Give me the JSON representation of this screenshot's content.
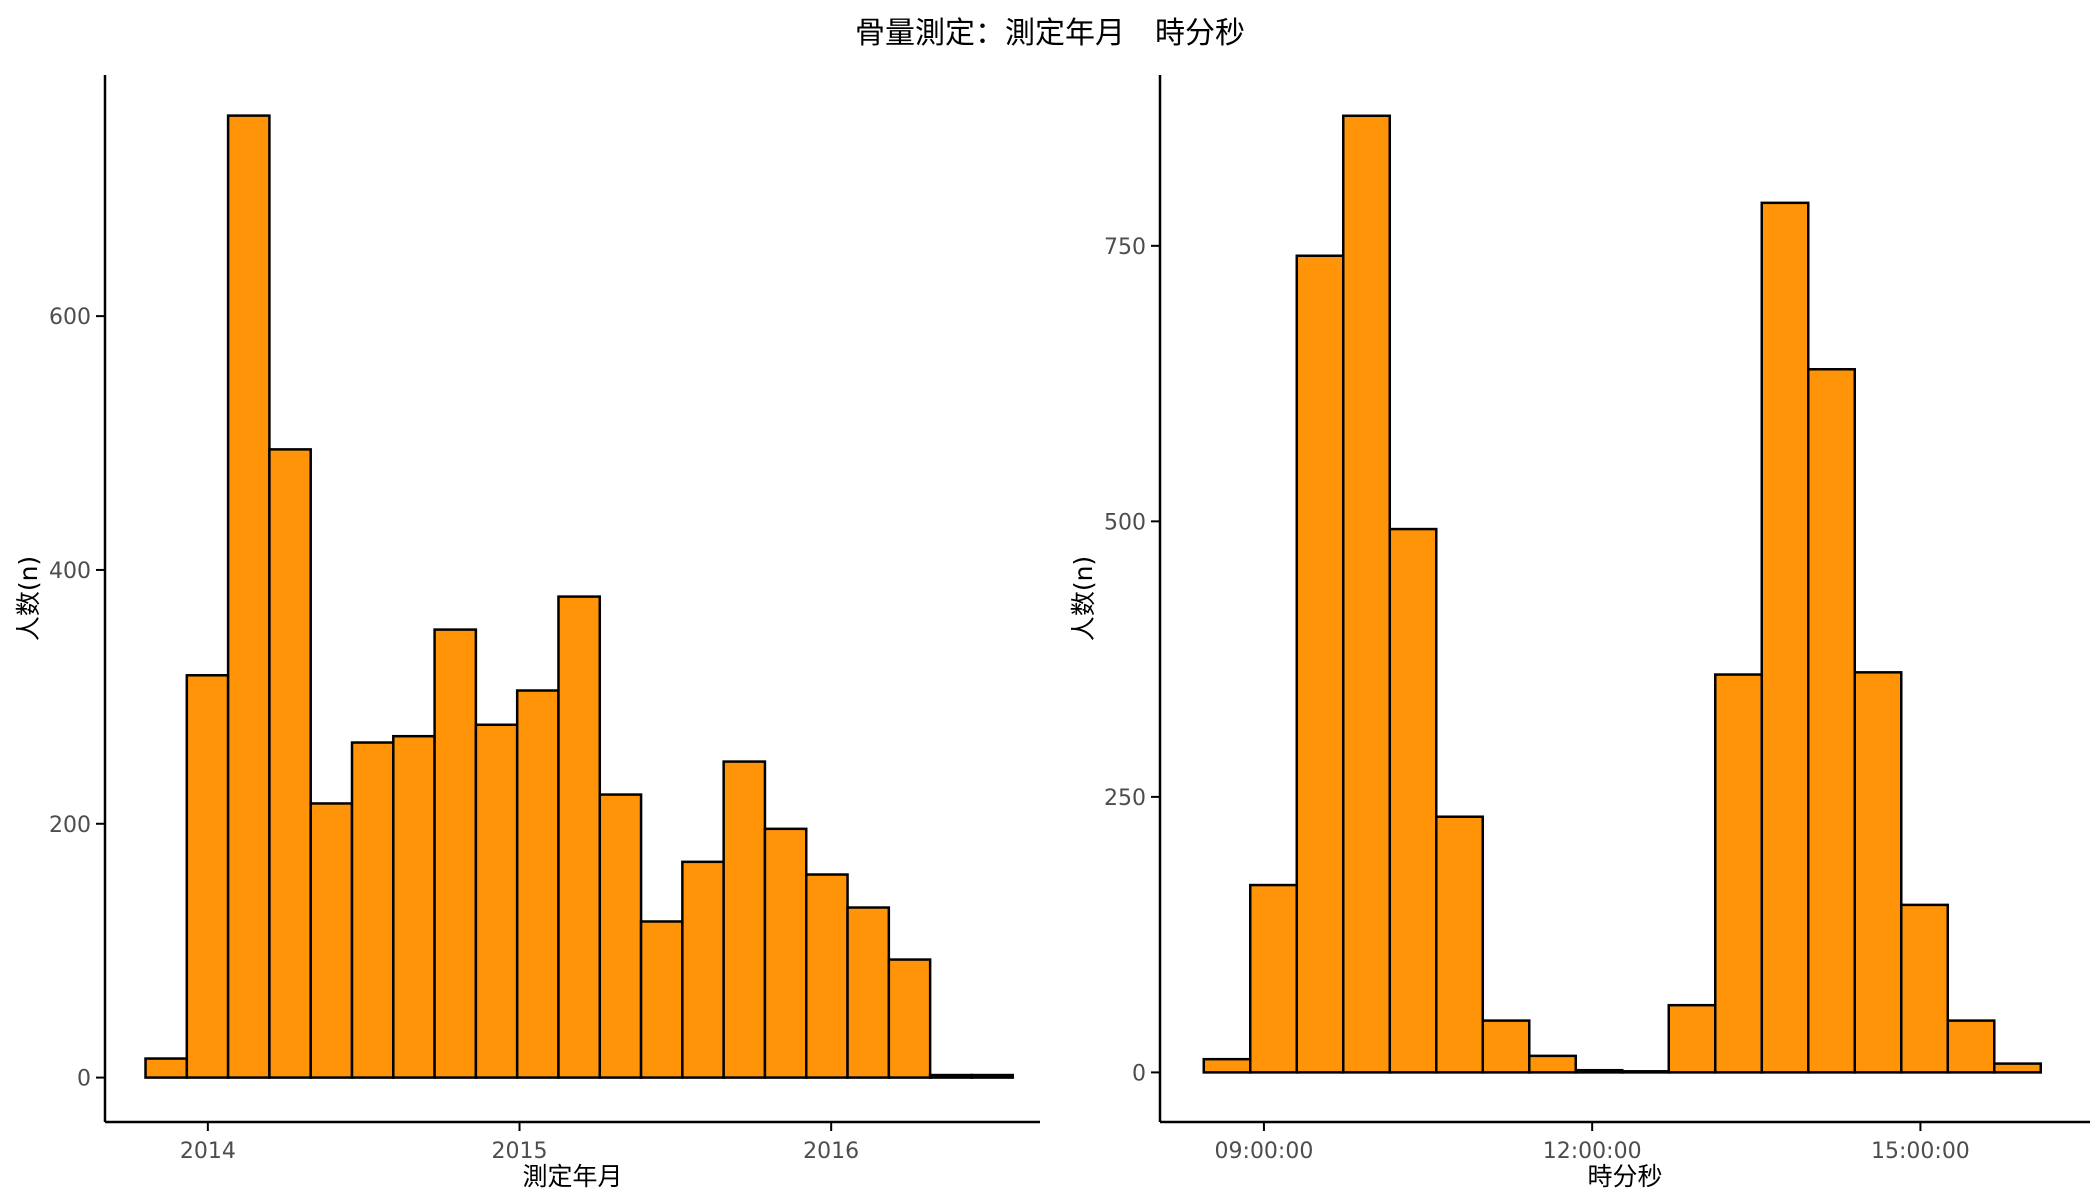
{
  "figure": {
    "title": "骨量測定：測定年月　時分秒"
  },
  "colors": {
    "bar_fill": "#FF9408",
    "bar_stroke": "#000000",
    "axis": "#000000",
    "tick_text": "#4d4d4d"
  },
  "chart_data": [
    {
      "type": "bar",
      "title": "",
      "xlabel": "測定年月",
      "ylabel": "人数(n)",
      "xlim": [
        2013.67,
        2016.67
      ],
      "ylim": [
        -35,
        790
      ],
      "x_ticks": [
        {
          "value": 2014,
          "label": "2014"
        },
        {
          "value": 2015,
          "label": "2015"
        },
        {
          "value": 2016,
          "label": "2016"
        }
      ],
      "y_ticks": [
        {
          "value": 0,
          "label": "0"
        },
        {
          "value": 200,
          "label": "200"
        },
        {
          "value": 400,
          "label": "400"
        },
        {
          "value": 600,
          "label": "600"
        }
      ],
      "bin_start": 2013.8,
      "bin_width": 0.1325,
      "values": [
        15,
        317,
        758,
        495,
        216,
        264,
        269,
        353,
        278,
        305,
        379,
        223,
        123,
        170,
        249,
        196,
        160,
        134,
        93,
        2,
        2
      ]
    },
    {
      "type": "bar",
      "title": "",
      "xlabel": "時分秒",
      "ylabel": "人数(n)",
      "xlim": [
        8.05,
        16.55
      ],
      "ylim": [
        -45,
        905
      ],
      "x_ticks": [
        {
          "value": 9,
          "label": "09:00:00"
        },
        {
          "value": 12,
          "label": "12:00:00"
        },
        {
          "value": 15,
          "label": "15:00:00"
        }
      ],
      "y_ticks": [
        {
          "value": 0,
          "label": "0"
        },
        {
          "value": 250,
          "label": "250"
        },
        {
          "value": 500,
          "label": "500"
        },
        {
          "value": 750,
          "label": "750"
        }
      ],
      "bin_start": 8.45,
      "bin_width": 0.425,
      "values": [
        12,
        170,
        741,
        868,
        493,
        232,
        47,
        15,
        2,
        1,
        61,
        361,
        789,
        638,
        363,
        152,
        47,
        8
      ]
    }
  ]
}
